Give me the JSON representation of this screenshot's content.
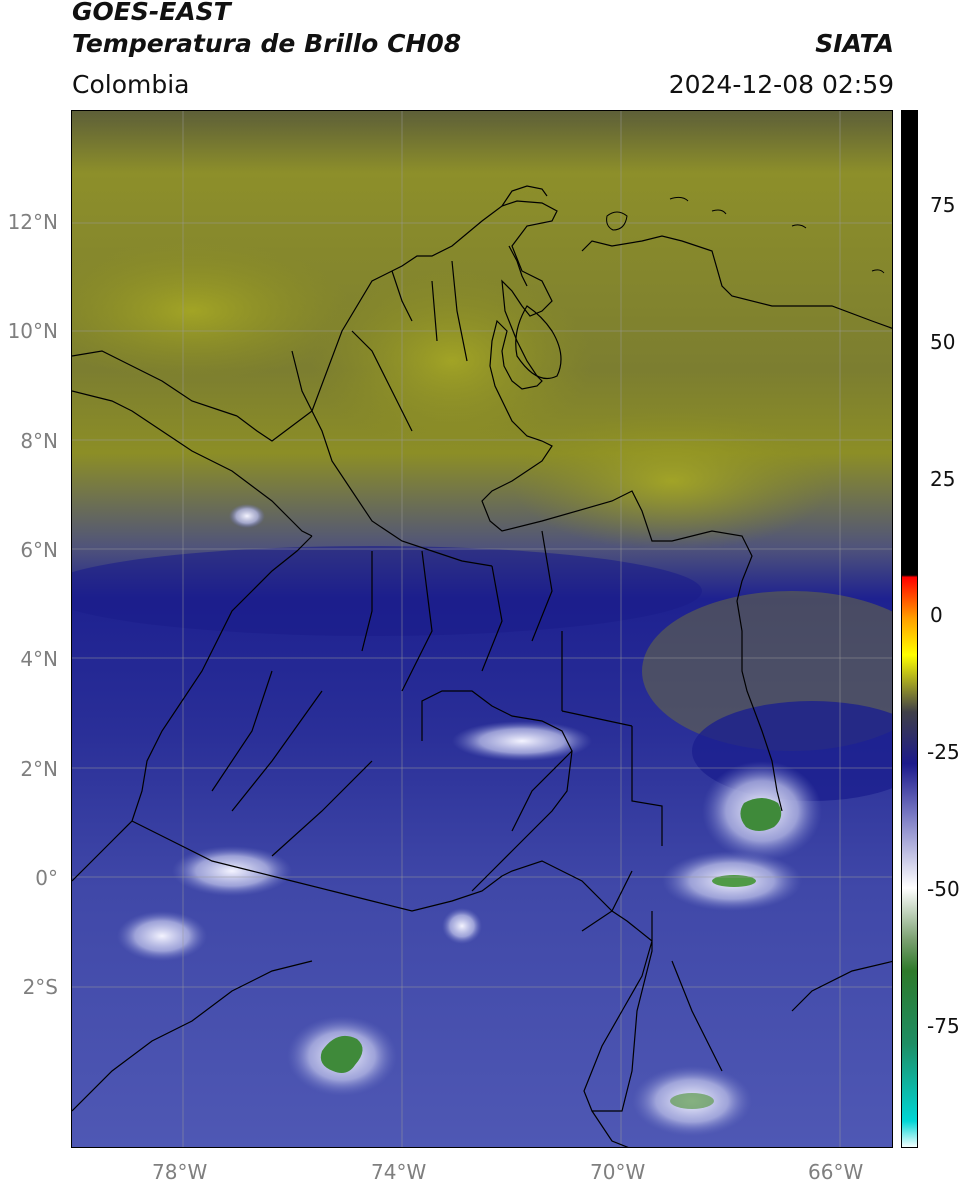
{
  "header": {
    "title_line1": "GOES-EAST",
    "title_line2": "Temperatura de Brillo CH08",
    "region": "Colombia",
    "source": "SIATA",
    "datetime": "2024-12-08 02:59"
  },
  "map": {
    "lat_ticks": [
      "12°N",
      "10°N",
      "8°N",
      "6°N",
      "4°N",
      "2°N",
      "0°",
      "2°S"
    ],
    "lon_ticks": [
      "78°W",
      "74°W",
      "70°W",
      "66°W"
    ],
    "colors": {
      "cold_cloud_white": "#e8e8f0",
      "deep_blue": "#1c2090",
      "mid_blue": "#4c55b0",
      "olive": "#8e9020",
      "dark_olive": "#6a6b28",
      "green_core": "#3f8a3a"
    }
  },
  "colorbar": {
    "ticks": [
      "75",
      "50",
      "25",
      "0",
      "-25",
      "-50",
      "-75"
    ],
    "stops": [
      "#f4ffff",
      "#00d6d6",
      "#1e8e64",
      "#2e7a2a",
      "#7aa070",
      "#ffffff",
      "#7a7ac4",
      "#1c1a8c",
      "#404048",
      "#ffff00",
      "#ffa000",
      "#ff0000",
      "#000000"
    ]
  }
}
